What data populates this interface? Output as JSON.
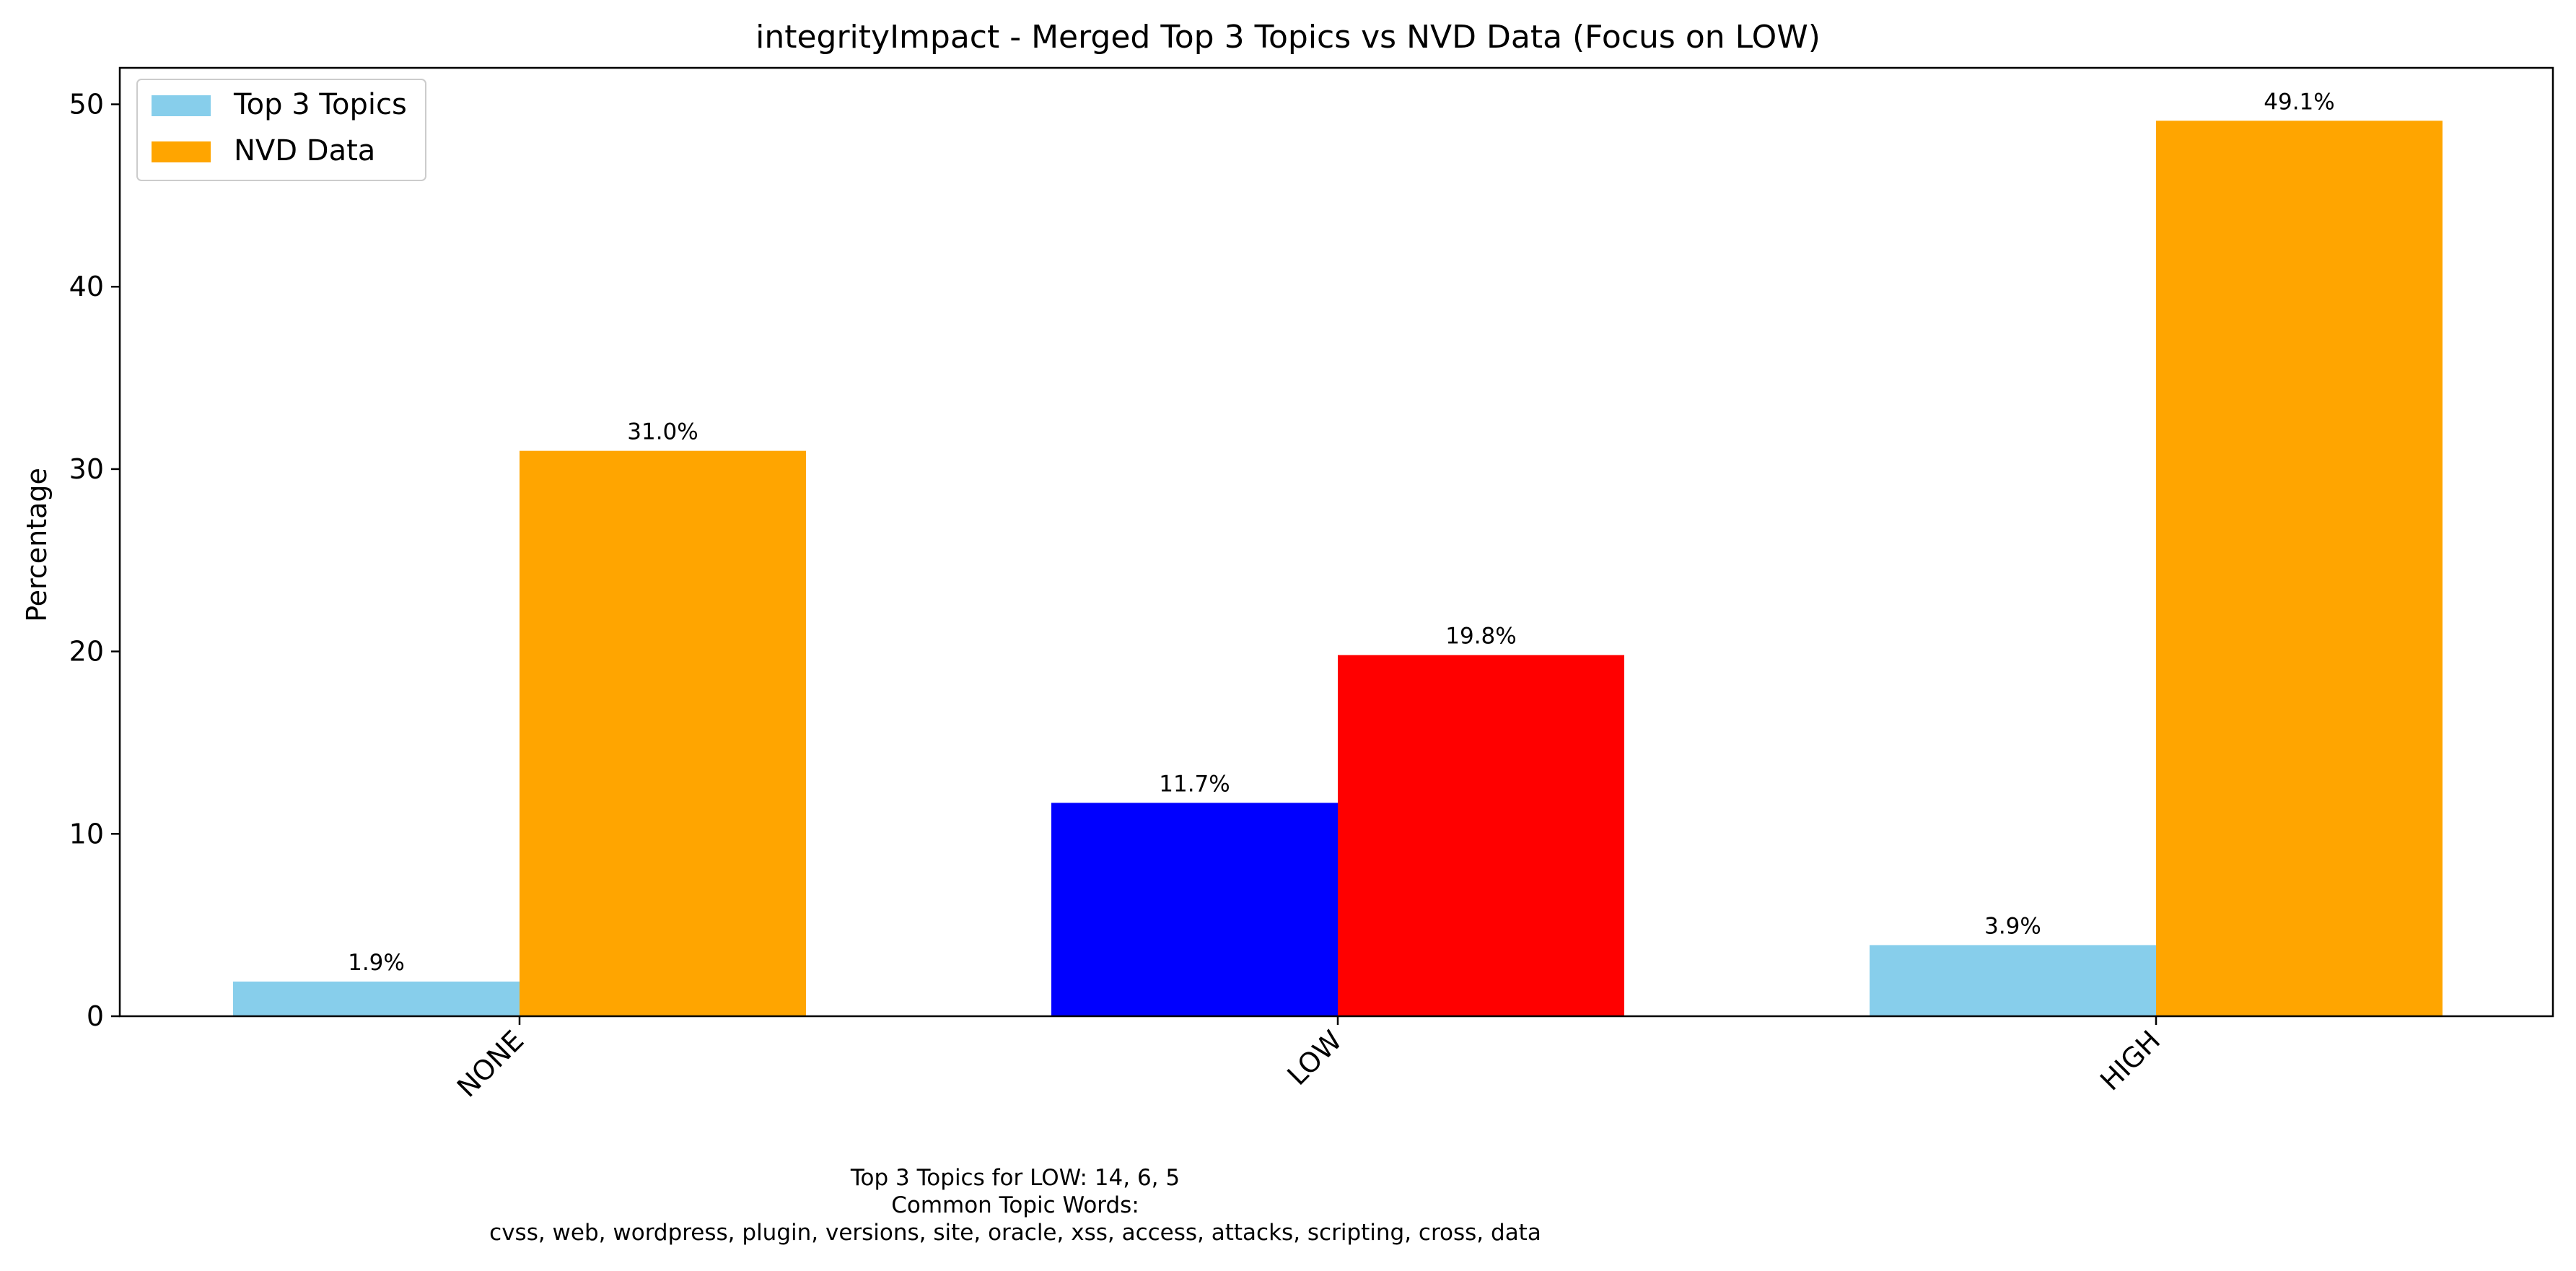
{
  "chart_data": {
    "type": "bar",
    "title": "integrityImpact - Merged Top 3 Topics vs NVD Data (Focus on LOW)",
    "xlabel": "",
    "ylabel": "Percentage",
    "categories": [
      "NONE",
      "LOW",
      "HIGH"
    ],
    "ylim": [
      0,
      52
    ],
    "yticks": [
      0,
      10,
      20,
      30,
      40,
      50
    ],
    "grid": false,
    "legend_position": "top-left",
    "series": [
      {
        "name": "Top 3 Topics",
        "values": [
          1.9,
          11.7,
          3.9
        ],
        "labels": [
          "1.9%",
          "11.7%",
          "3.9%"
        ],
        "color": "#87ceeb",
        "highlight_colors": [
          "#87ceeb",
          "#0000ff",
          "#87ceeb"
        ]
      },
      {
        "name": "NVD Data",
        "values": [
          31.0,
          19.8,
          49.1
        ],
        "labels": [
          "31.0%",
          "19.8%",
          "49.1%"
        ],
        "color": "#ffa500",
        "highlight_colors": [
          "#ffa500",
          "#ff0000",
          "#ffa500"
        ]
      }
    ],
    "footnote": [
      "Top 3 Topics for LOW: 14, 6, 5",
      "Common Topic Words:",
      "cvss,  web,  wordpress,  plugin,  versions,  site,  oracle,  xss,  access,  attacks,  scripting,  cross,  data"
    ]
  }
}
